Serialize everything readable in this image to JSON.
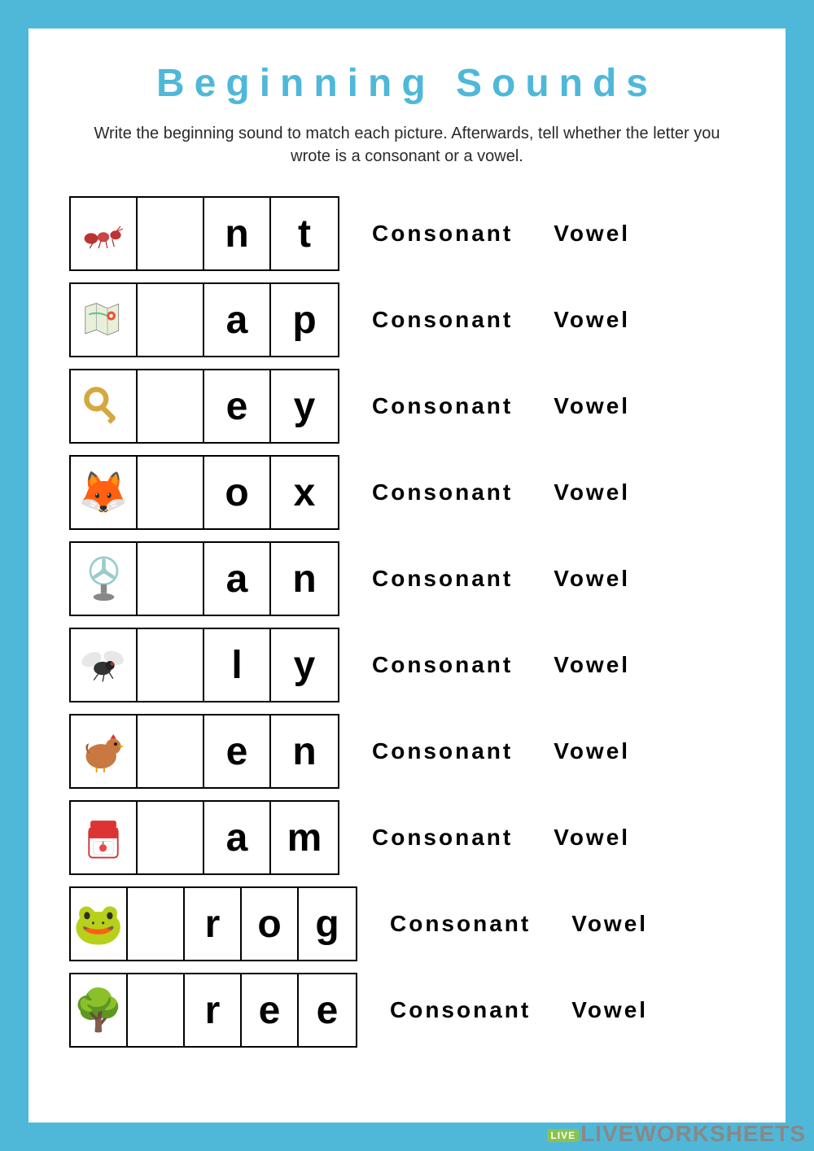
{
  "title": "Beginning Sounds",
  "instructions": "Write the beginning sound to match each picture. Afterwards, tell whether the letter you wrote is a consonant or a vowel.",
  "choice_labels": {
    "consonant": "Consonant",
    "vowel": "Vowel"
  },
  "colors": {
    "border": "#4fb8d9",
    "title": "#4fb8d9",
    "text": "#000000",
    "background": "#ffffff"
  },
  "rows": [
    {
      "icon": "ant",
      "emoji": "🐜",
      "letters": [
        "",
        "n",
        "t"
      ],
      "cells": 4
    },
    {
      "icon": "map",
      "emoji": "🗺️",
      "letters": [
        "",
        "a",
        "p"
      ],
      "cells": 4
    },
    {
      "icon": "key",
      "emoji": "🔑",
      "letters": [
        "",
        "e",
        "y"
      ],
      "cells": 4
    },
    {
      "icon": "fox",
      "emoji": "🦊",
      "letters": [
        "",
        "o",
        "x"
      ],
      "cells": 4
    },
    {
      "icon": "fan",
      "emoji": "💨",
      "letters": [
        "",
        "a",
        "n"
      ],
      "cells": 4
    },
    {
      "icon": "fly",
      "emoji": "🪰",
      "letters": [
        "",
        "l",
        "y"
      ],
      "cells": 4
    },
    {
      "icon": "hen",
      "emoji": "🐓",
      "letters": [
        "",
        "e",
        "n"
      ],
      "cells": 4
    },
    {
      "icon": "jam",
      "emoji": "🍓",
      "letters": [
        "",
        "a",
        "m"
      ],
      "cells": 4
    },
    {
      "icon": "frog",
      "emoji": "🐸",
      "letters": [
        "",
        "r",
        "o",
        "g"
      ],
      "cells": 5
    },
    {
      "icon": "tree",
      "emoji": "🌳",
      "letters": [
        "",
        "r",
        "e",
        "e"
      ],
      "cells": 5
    }
  ],
  "watermark": {
    "badge": "LIVE",
    "text": "LIVEWORKSHEETS"
  }
}
